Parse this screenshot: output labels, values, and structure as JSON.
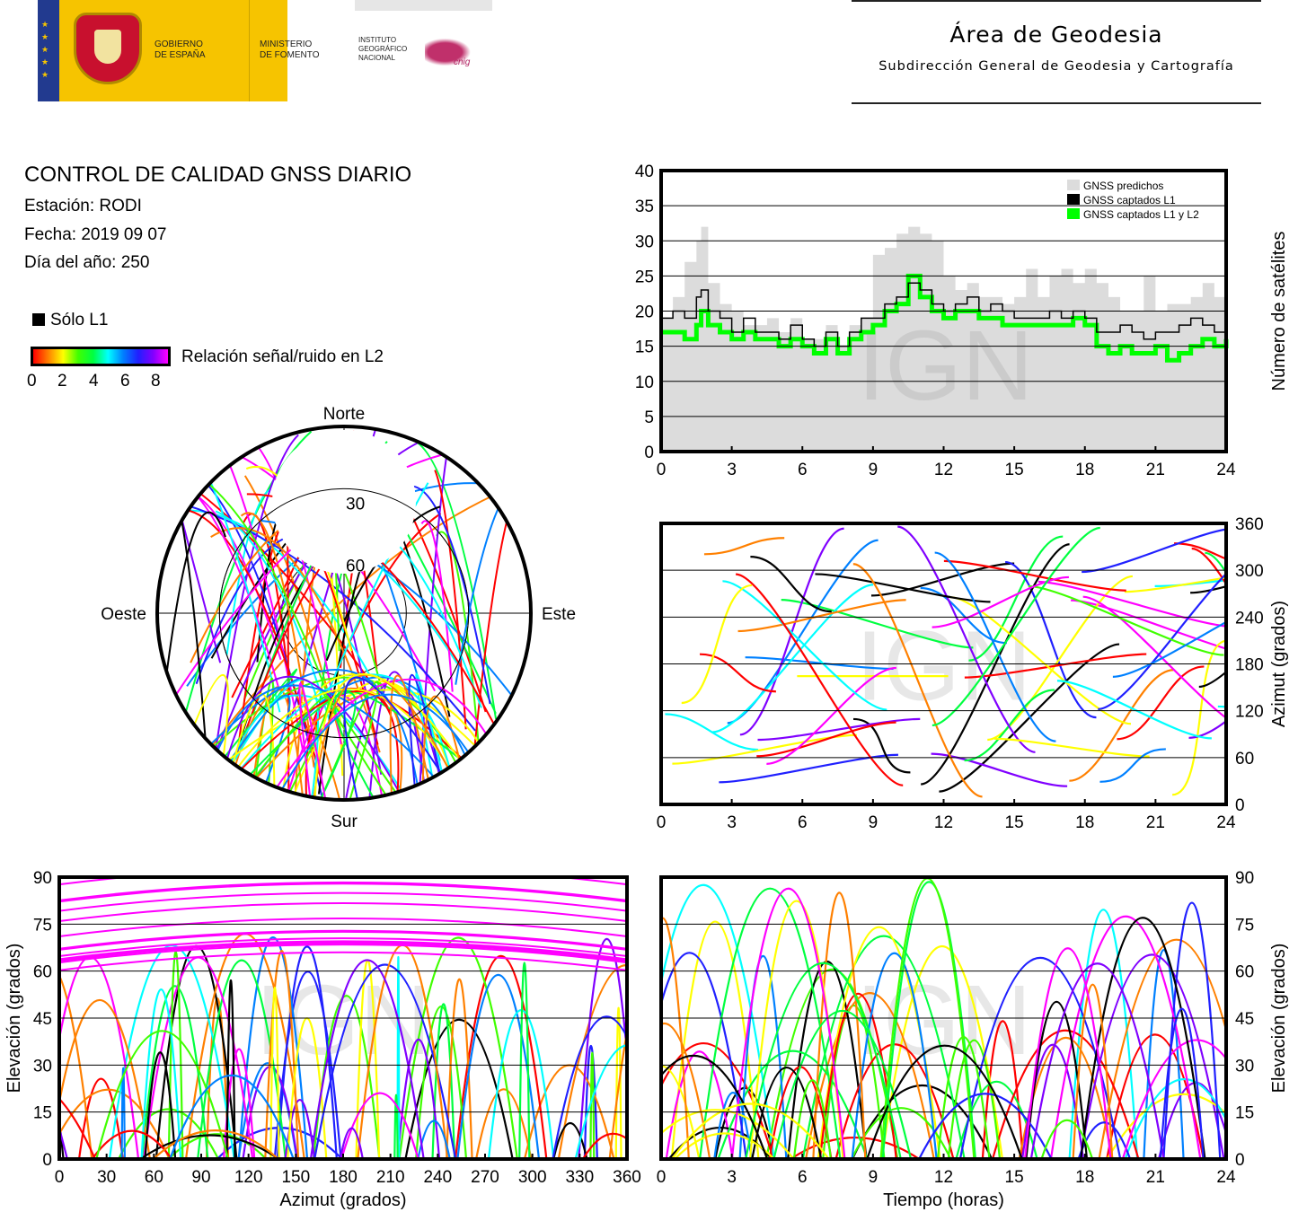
{
  "header": {
    "gov_line1": "GOBIERNO",
    "gov_line2": "DE ESPAÑA",
    "min_line1": "MINISTERIO",
    "min_line2": "DE FOMENTO",
    "ign_line1": "INSTITUTO",
    "ign_line2": "GEOGRÁFICO",
    "ign_line3": "NACIONAL",
    "cnig": "cnig",
    "area_title": "Área de Geodesia",
    "area_subtitle": "Subdirección General de Geodesia y Cartografía"
  },
  "info": {
    "title": "CONTROL DE CALIDAD GNSS DIARIO",
    "station": "Estación: RODI",
    "date": "Fecha: 2019 09 07",
    "doy": "Día del año: 250",
    "legend_l1": "Sólo L1",
    "snr_label": "Relación señal/ruido en L2",
    "snr_ticks": [
      "0",
      "2",
      "4",
      "6",
      "8"
    ]
  },
  "colors": {
    "predicted": "#dcdcdc",
    "l1": "#000000",
    "l1l2": "#00ff00",
    "snr_scale": [
      "#ff0000",
      "#ff8000",
      "#ffff00",
      "#40ff00",
      "#00ff40",
      "#00ffff",
      "#0080ff",
      "#2020ff",
      "#8000ff",
      "#ff00ff"
    ]
  },
  "watermark": "IGN",
  "chart_data": [
    {
      "id": "satellite-count",
      "type": "area",
      "xlim": [
        0,
        24
      ],
      "ylim": [
        0,
        40
      ],
      "xticks": [
        "0",
        "3",
        "6",
        "9",
        "12",
        "15",
        "18",
        "21",
        "24"
      ],
      "yticks": [
        "0",
        "5",
        "10",
        "15",
        "20",
        "25",
        "30",
        "35",
        "40"
      ],
      "ylabel": "Número de satélites",
      "legend": [
        "GNSS predichos",
        "GNSS captados L1",
        "GNSS captados L1 y L2"
      ],
      "legend_position": "top-right",
      "grid": true,
      "x": [
        0,
        0.5,
        1,
        1.5,
        1.7,
        2,
        2.5,
        3,
        3.5,
        4,
        4.5,
        5,
        5.5,
        6,
        6.5,
        7,
        7.5,
        8,
        8.5,
        9,
        9.5,
        10,
        10.5,
        11,
        11.5,
        12,
        12.5,
        13,
        13.5,
        14,
        14.5,
        15,
        15.5,
        16,
        16.5,
        17,
        17.5,
        18,
        18.5,
        19,
        19.5,
        20,
        20.5,
        21,
        21.5,
        22,
        22.5,
        23,
        23.5,
        24
      ],
      "series": [
        {
          "name": "GNSS predichos",
          "values": [
            19,
            22,
            27,
            30,
            32,
            24,
            21,
            20,
            18,
            18,
            19,
            17,
            19,
            16,
            16,
            18,
            15,
            18,
            19,
            28,
            29,
            31,
            32,
            31,
            30,
            25,
            23,
            24,
            22,
            22,
            21,
            22,
            26,
            22,
            25,
            26,
            24,
            26,
            24,
            22,
            20,
            20,
            25,
            20,
            21,
            21,
            22,
            24,
            22,
            20
          ]
        },
        {
          "name": "GNSS captados L1",
          "values": [
            19,
            20,
            19,
            22,
            23,
            20,
            19,
            17,
            19,
            17,
            17,
            16,
            18,
            16,
            15,
            17,
            15,
            17,
            19,
            19,
            21,
            22,
            24,
            23,
            21,
            20,
            21,
            22,
            20,
            21,
            20,
            19,
            19,
            19,
            20,
            19,
            20,
            19,
            17,
            17,
            18,
            17,
            16,
            17,
            17,
            18,
            19,
            18,
            17,
            17
          ]
        },
        {
          "name": "GNSS captados L1 y L2",
          "values": [
            17,
            17,
            16,
            18,
            20,
            18,
            17,
            16,
            17,
            16,
            16,
            15,
            16,
            15,
            14,
            16,
            14,
            16,
            17,
            18,
            20,
            21,
            25,
            22,
            20,
            19,
            20,
            20,
            19,
            19,
            18,
            18,
            18,
            18,
            18,
            18,
            19,
            18,
            15,
            14,
            15,
            14,
            14,
            15,
            13,
            14,
            15,
            16,
            15,
            16
          ]
        }
      ]
    },
    {
      "id": "skyplot",
      "type": "scatter",
      "labels": {
        "north": "Norte",
        "south": "Sur",
        "east": "Este",
        "west": "Oeste"
      },
      "rings": [
        "30",
        "60"
      ],
      "color_scale": "snr"
    },
    {
      "id": "azimuth-vs-time",
      "type": "scatter",
      "xlim": [
        0,
        24
      ],
      "ylim": [
        0,
        360
      ],
      "xticks": [
        "0",
        "3",
        "6",
        "9",
        "12",
        "15",
        "18",
        "21",
        "24"
      ],
      "yticks": [
        "0",
        "60",
        "120",
        "180",
        "240",
        "300",
        "360"
      ],
      "ylabel": "Azimut (grados)",
      "grid": true
    },
    {
      "id": "elevation-vs-azimuth",
      "type": "scatter",
      "xlim": [
        0,
        360
      ],
      "ylim": [
        0,
        90
      ],
      "xticks": [
        "0",
        "30",
        "60",
        "90",
        "120",
        "150",
        "180",
        "210",
        "240",
        "270",
        "300",
        "330",
        "360"
      ],
      "yticks": [
        "0",
        "15",
        "30",
        "45",
        "60",
        "75",
        "90"
      ],
      "xlabel": "Azimut (grados)",
      "ylabel": "Elevación (grados)",
      "grid": true
    },
    {
      "id": "elevation-vs-time",
      "type": "scatter",
      "xlim": [
        0,
        24
      ],
      "ylim": [
        0,
        90
      ],
      "xticks": [
        "0",
        "3",
        "6",
        "9",
        "12",
        "15",
        "18",
        "21",
        "24"
      ],
      "yticks": [
        "0",
        "15",
        "30",
        "45",
        "60",
        "75",
        "90"
      ],
      "xlabel": "Tiempo (horas)",
      "ylabel": "Elevación (grados)",
      "grid": true
    }
  ]
}
